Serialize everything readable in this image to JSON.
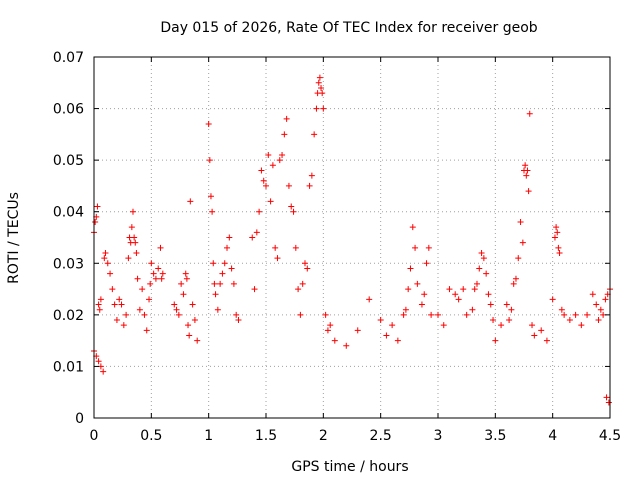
{
  "chart_data": {
    "type": "scatter",
    "title": "Day 015 of 2026, Rate Of TEC Index for receiver geob",
    "xlabel": "GPS time / hours",
    "ylabel": "ROTI / TECUs",
    "xlim": [
      0,
      4.5
    ],
    "ylim": [
      0,
      0.07
    ],
    "xticks": [
      0,
      0.5,
      1,
      1.5,
      2,
      2.5,
      3,
      3.5,
      4,
      4.5
    ],
    "xtick_labels": [
      "0",
      "0.5",
      "1",
      "1.5",
      "2",
      "2.5",
      "3",
      "3.5",
      "4",
      "4.5"
    ],
    "yticks": [
      0,
      0.01,
      0.02,
      0.03,
      0.04,
      0.05,
      0.06,
      0.07
    ],
    "ytick_labels": [
      "0",
      "0.01",
      "0.02",
      "0.03",
      "0.04",
      "0.05",
      "0.06",
      "0.07"
    ],
    "grid": true,
    "marker": "+",
    "color": "#ff0000",
    "series": [
      {
        "name": "ROTI",
        "points": [
          [
            0.0,
            0.036
          ],
          [
            0.01,
            0.038
          ],
          [
            0.02,
            0.039
          ],
          [
            0.03,
            0.041
          ],
          [
            0.04,
            0.022
          ],
          [
            0.05,
            0.021
          ],
          [
            0.06,
            0.023
          ],
          [
            0.0,
            0.013
          ],
          [
            0.02,
            0.012
          ],
          [
            0.04,
            0.011
          ],
          [
            0.06,
            0.01
          ],
          [
            0.08,
            0.009
          ],
          [
            0.09,
            0.031
          ],
          [
            0.1,
            0.032
          ],
          [
            0.12,
            0.03
          ],
          [
            0.14,
            0.028
          ],
          [
            0.16,
            0.025
          ],
          [
            0.18,
            0.022
          ],
          [
            0.2,
            0.019
          ],
          [
            0.22,
            0.023
          ],
          [
            0.24,
            0.022
          ],
          [
            0.26,
            0.018
          ],
          [
            0.28,
            0.02
          ],
          [
            0.3,
            0.031
          ],
          [
            0.31,
            0.035
          ],
          [
            0.32,
            0.034
          ],
          [
            0.33,
            0.037
          ],
          [
            0.34,
            0.04
          ],
          [
            0.35,
            0.035
          ],
          [
            0.36,
            0.034
          ],
          [
            0.37,
            0.032
          ],
          [
            0.38,
            0.027
          ],
          [
            0.4,
            0.021
          ],
          [
            0.42,
            0.025
          ],
          [
            0.44,
            0.02
          ],
          [
            0.46,
            0.017
          ],
          [
            0.48,
            0.023
          ],
          [
            0.49,
            0.026
          ],
          [
            0.5,
            0.03
          ],
          [
            0.52,
            0.028
          ],
          [
            0.54,
            0.027
          ],
          [
            0.56,
            0.029
          ],
          [
            0.58,
            0.033
          ],
          [
            0.59,
            0.027
          ],
          [
            0.6,
            0.028
          ],
          [
            0.7,
            0.022
          ],
          [
            0.72,
            0.021
          ],
          [
            0.74,
            0.02
          ],
          [
            0.76,
            0.026
          ],
          [
            0.78,
            0.024
          ],
          [
            0.8,
            0.028
          ],
          [
            0.81,
            0.027
          ],
          [
            0.82,
            0.018
          ],
          [
            0.83,
            0.016
          ],
          [
            0.84,
            0.042
          ],
          [
            0.86,
            0.022
          ],
          [
            0.88,
            0.019
          ],
          [
            0.9,
            0.015
          ],
          [
            1.0,
            0.057
          ],
          [
            1.01,
            0.05
          ],
          [
            1.02,
            0.043
          ],
          [
            1.03,
            0.04
          ],
          [
            1.04,
            0.03
          ],
          [
            1.05,
            0.026
          ],
          [
            1.06,
            0.024
          ],
          [
            1.08,
            0.021
          ],
          [
            1.1,
            0.026
          ],
          [
            1.12,
            0.028
          ],
          [
            1.14,
            0.03
          ],
          [
            1.16,
            0.033
          ],
          [
            1.18,
            0.035
          ],
          [
            1.2,
            0.029
          ],
          [
            1.22,
            0.026
          ],
          [
            1.24,
            0.02
          ],
          [
            1.26,
            0.019
          ],
          [
            1.38,
            0.035
          ],
          [
            1.4,
            0.025
          ],
          [
            1.42,
            0.036
          ],
          [
            1.44,
            0.04
          ],
          [
            1.46,
            0.048
          ],
          [
            1.48,
            0.046
          ],
          [
            1.5,
            0.045
          ],
          [
            1.52,
            0.051
          ],
          [
            1.54,
            0.042
          ],
          [
            1.56,
            0.049
          ],
          [
            1.58,
            0.033
          ],
          [
            1.6,
            0.031
          ],
          [
            1.62,
            0.05
          ],
          [
            1.64,
            0.051
          ],
          [
            1.66,
            0.055
          ],
          [
            1.68,
            0.058
          ],
          [
            1.7,
            0.045
          ],
          [
            1.72,
            0.041
          ],
          [
            1.74,
            0.04
          ],
          [
            1.76,
            0.033
          ],
          [
            1.78,
            0.025
          ],
          [
            1.8,
            0.02
          ],
          [
            1.82,
            0.026
          ],
          [
            1.84,
            0.03
          ],
          [
            1.86,
            0.029
          ],
          [
            1.88,
            0.045
          ],
          [
            1.9,
            0.047
          ],
          [
            1.92,
            0.055
          ],
          [
            1.94,
            0.06
          ],
          [
            1.95,
            0.063
          ],
          [
            1.96,
            0.065
          ],
          [
            1.97,
            0.066
          ],
          [
            1.98,
            0.064
          ],
          [
            1.99,
            0.063
          ],
          [
            2.0,
            0.06
          ],
          [
            2.02,
            0.02
          ],
          [
            2.04,
            0.017
          ],
          [
            2.06,
            0.018
          ],
          [
            2.1,
            0.015
          ],
          [
            2.2,
            0.014
          ],
          [
            2.3,
            0.017
          ],
          [
            2.4,
            0.023
          ],
          [
            2.5,
            0.019
          ],
          [
            2.55,
            0.016
          ],
          [
            2.6,
            0.018
          ],
          [
            2.65,
            0.015
          ],
          [
            2.7,
            0.02
          ],
          [
            2.72,
            0.021
          ],
          [
            2.74,
            0.025
          ],
          [
            2.76,
            0.029
          ],
          [
            2.78,
            0.037
          ],
          [
            2.8,
            0.033
          ],
          [
            2.82,
            0.026
          ],
          [
            2.86,
            0.022
          ],
          [
            2.88,
            0.024
          ],
          [
            2.9,
            0.03
          ],
          [
            2.92,
            0.033
          ],
          [
            2.94,
            0.02
          ],
          [
            3.0,
            0.02
          ],
          [
            3.05,
            0.018
          ],
          [
            3.1,
            0.025
          ],
          [
            3.15,
            0.024
          ],
          [
            3.18,
            0.023
          ],
          [
            3.22,
            0.025
          ],
          [
            3.25,
            0.02
          ],
          [
            3.3,
            0.021
          ],
          [
            3.32,
            0.025
          ],
          [
            3.34,
            0.026
          ],
          [
            3.36,
            0.029
          ],
          [
            3.38,
            0.032
          ],
          [
            3.4,
            0.031
          ],
          [
            3.42,
            0.028
          ],
          [
            3.44,
            0.024
          ],
          [
            3.46,
            0.022
          ],
          [
            3.48,
            0.019
          ],
          [
            3.5,
            0.015
          ],
          [
            3.55,
            0.018
          ],
          [
            3.6,
            0.022
          ],
          [
            3.62,
            0.019
          ],
          [
            3.64,
            0.021
          ],
          [
            3.66,
            0.026
          ],
          [
            3.68,
            0.027
          ],
          [
            3.7,
            0.031
          ],
          [
            3.72,
            0.038
          ],
          [
            3.74,
            0.034
          ],
          [
            3.75,
            0.048
          ],
          [
            3.76,
            0.049
          ],
          [
            3.77,
            0.047
          ],
          [
            3.78,
            0.048
          ],
          [
            3.79,
            0.044
          ],
          [
            3.8,
            0.059
          ],
          [
            3.82,
            0.018
          ],
          [
            3.84,
            0.016
          ],
          [
            3.9,
            0.017
          ],
          [
            3.95,
            0.015
          ],
          [
            4.0,
            0.023
          ],
          [
            4.02,
            0.035
          ],
          [
            4.03,
            0.037
          ],
          [
            4.04,
            0.036
          ],
          [
            4.05,
            0.033
          ],
          [
            4.06,
            0.032
          ],
          [
            4.08,
            0.021
          ],
          [
            4.1,
            0.02
          ],
          [
            4.15,
            0.019
          ],
          [
            4.2,
            0.02
          ],
          [
            4.25,
            0.018
          ],
          [
            4.3,
            0.02
          ],
          [
            4.35,
            0.024
          ],
          [
            4.38,
            0.022
          ],
          [
            4.4,
            0.019
          ],
          [
            4.42,
            0.021
          ],
          [
            4.44,
            0.02
          ],
          [
            4.46,
            0.023
          ],
          [
            4.48,
            0.024
          ],
          [
            4.5,
            0.025
          ],
          [
            4.47,
            0.004
          ],
          [
            4.49,
            0.003
          ]
        ]
      }
    ]
  }
}
